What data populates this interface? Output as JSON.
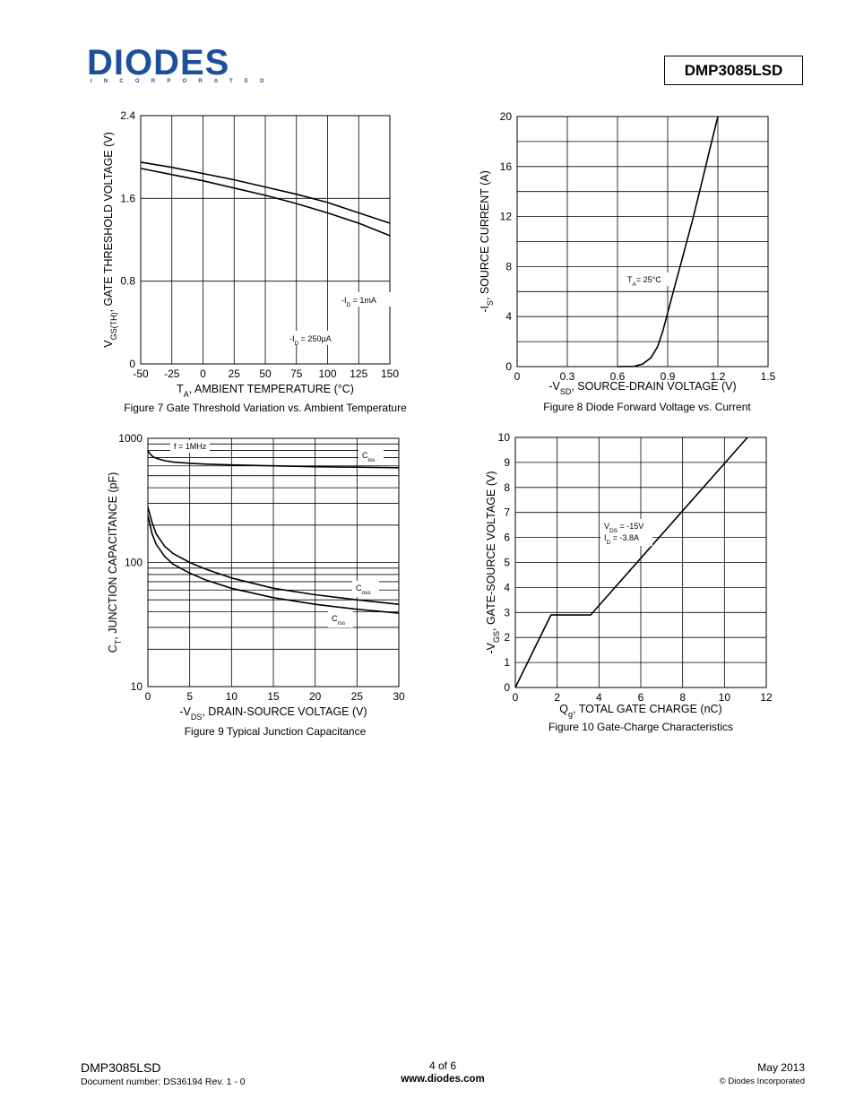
{
  "header": {
    "logo_text": "DIODES",
    "logo_subtext": "INCORPORATED",
    "part_number": "DMP3085LSD",
    "brand_color": "#1c4f9c"
  },
  "chart_data": [
    {
      "type": "line",
      "figure": "fig7",
      "caption": "Figure 7  Gate Threshold Variation vs. Ambient Temperature",
      "xlabel": {
        "main": "T",
        "sub": "A",
        "rest": ", AMBIENT TEMPERATURE (°C)"
      },
      "ylabel": {
        "main": "V",
        "sub": "GS(TH)",
        "rest": ", GATE THRESHOLD VOLTAGE (V)"
      },
      "xlim": [
        -50,
        150
      ],
      "ylim": [
        0,
        2.4
      ],
      "xticks": [
        -50,
        -25,
        0,
        25,
        50,
        75,
        100,
        125,
        150
      ],
      "yticks": [
        0,
        0.8,
        1.6,
        2.4
      ],
      "ytick_labels": [
        "0",
        "0.8",
        "1.6",
        "2.4"
      ],
      "grid": true,
      "series": [
        {
          "name": {
            "main": "-I",
            "sub": "D",
            "rest": " = 1mA"
          },
          "x": [
            -50,
            -25,
            0,
            25,
            50,
            75,
            100,
            125,
            150
          ],
          "y": [
            1.95,
            1.9,
            1.84,
            1.78,
            1.71,
            1.64,
            1.56,
            1.46,
            1.36
          ]
        },
        {
          "name": {
            "main": "-I",
            "sub": "D",
            "rest": " = 250µA"
          },
          "x": [
            -50,
            -25,
            0,
            25,
            50,
            75,
            100,
            125,
            150
          ],
          "y": [
            1.89,
            1.83,
            1.77,
            1.7,
            1.63,
            1.55,
            1.46,
            1.36,
            1.24
          ]
        }
      ]
    },
    {
      "type": "line",
      "figure": "fig8",
      "caption": "Figure 8  Diode Forward Voltage vs. Current",
      "xlabel": {
        "main": "-V",
        "sub": "SD",
        "rest": ", SOURCE-DRAIN VOLTAGE (V)"
      },
      "ylabel": {
        "main": "-I",
        "sub": "S",
        "rest": ", SOURCE CURRENT (A)"
      },
      "xlim": [
        0,
        1.5
      ],
      "ylim": [
        0,
        20
      ],
      "xticks": [
        0,
        0.3,
        0.6,
        0.9,
        1.2,
        1.5
      ],
      "xtick_labels": [
        "0",
        "0.3",
        "0.6",
        "0.9",
        "1.2",
        "1.5"
      ],
      "yticks": [
        0,
        4,
        8,
        12,
        16,
        20
      ],
      "grid": true,
      "annotation": {
        "main": "T",
        "sub": "A",
        "rest": "= 25°C"
      },
      "series": [
        {
          "x": [
            0.6,
            0.7,
            0.75,
            0.8,
            0.84,
            0.87,
            0.9,
            0.95,
            1.0,
            1.05,
            1.1,
            1.15,
            1.2
          ],
          "y": [
            0,
            0.02,
            0.2,
            0.7,
            1.6,
            2.8,
            4.3,
            6.8,
            9.3,
            11.8,
            14.5,
            17.3,
            20
          ]
        }
      ]
    },
    {
      "type": "line",
      "figure": "fig9",
      "caption": "Figure 9  Typical Junction Capacitance",
      "xlabel": {
        "main": "-V",
        "sub": "DS",
        "rest": ", DRAIN-SOURCE VOLTAGE (V)"
      },
      "ylabel": {
        "main": "C",
        "sub": "T",
        "rest": ", JUNCTION CAPACITANCE (pF)"
      },
      "xlim": [
        0,
        30
      ],
      "ylim": [
        10,
        1000
      ],
      "yscale": "log",
      "xticks": [
        0,
        5,
        10,
        15,
        20,
        25,
        30
      ],
      "yticks": [
        10,
        100,
        1000
      ],
      "grid": true,
      "annotation": "f = 1MHz",
      "series": [
        {
          "name": {
            "main": "C",
            "sub": "iss",
            "rest": ""
          },
          "x": [
            0,
            0.5,
            1,
            2,
            3,
            5,
            7,
            10,
            15,
            20,
            25,
            30
          ],
          "y": [
            790,
            720,
            690,
            660,
            645,
            630,
            620,
            610,
            600,
            590,
            585,
            580
          ]
        },
        {
          "name": {
            "main": "C",
            "sub": "oss",
            "rest": ""
          },
          "x": [
            0,
            0.5,
            1,
            2,
            3,
            5,
            7,
            10,
            15,
            20,
            25,
            30
          ],
          "y": [
            280,
            210,
            170,
            135,
            118,
            100,
            88,
            75,
            62,
            55,
            50,
            46
          ]
        },
        {
          "name": {
            "main": "C",
            "sub": "rss",
            "rest": ""
          },
          "x": [
            0,
            0.5,
            1,
            2,
            3,
            5,
            7,
            10,
            15,
            20,
            25,
            30
          ],
          "y": [
            240,
            170,
            140,
            112,
            97,
            82,
            72,
            62,
            52,
            46,
            42,
            39
          ]
        }
      ]
    },
    {
      "type": "line",
      "figure": "fig10",
      "caption": "Figure 10  Gate-Charge Characteristics",
      "xlabel": {
        "main": "Q",
        "sub": "g",
        "rest": ", TOTAL GATE CHARGE (nC)"
      },
      "ylabel": {
        "main": "-V",
        "sub": "GS",
        "rest": ", GATE-SOURCE VOLTAGE (V)"
      },
      "xlim": [
        0,
        12
      ],
      "ylim": [
        0,
        10
      ],
      "xticks": [
        0,
        2,
        4,
        6,
        8,
        10,
        12
      ],
      "yticks": [
        0,
        1,
        2,
        3,
        4,
        5,
        6,
        7,
        8,
        9,
        10
      ],
      "grid": true,
      "annotation": [
        {
          "main": "V",
          "sub": "DS",
          "rest": " = -15V"
        },
        {
          "main": "I",
          "sub": "D",
          "rest": " = -3.8A"
        }
      ],
      "series": [
        {
          "x": [
            0,
            1.7,
            3.6,
            11.1
          ],
          "y": [
            0,
            2.9,
            2.9,
            10
          ]
        }
      ]
    }
  ],
  "footer": {
    "part_number": "DMP3085LSD",
    "document": "Document number: DS36194  Rev. 1 - 0",
    "page": "4 of 6",
    "website": "www.diodes.com",
    "date": "May 2013",
    "copyright": "© Diodes Incorporated"
  }
}
